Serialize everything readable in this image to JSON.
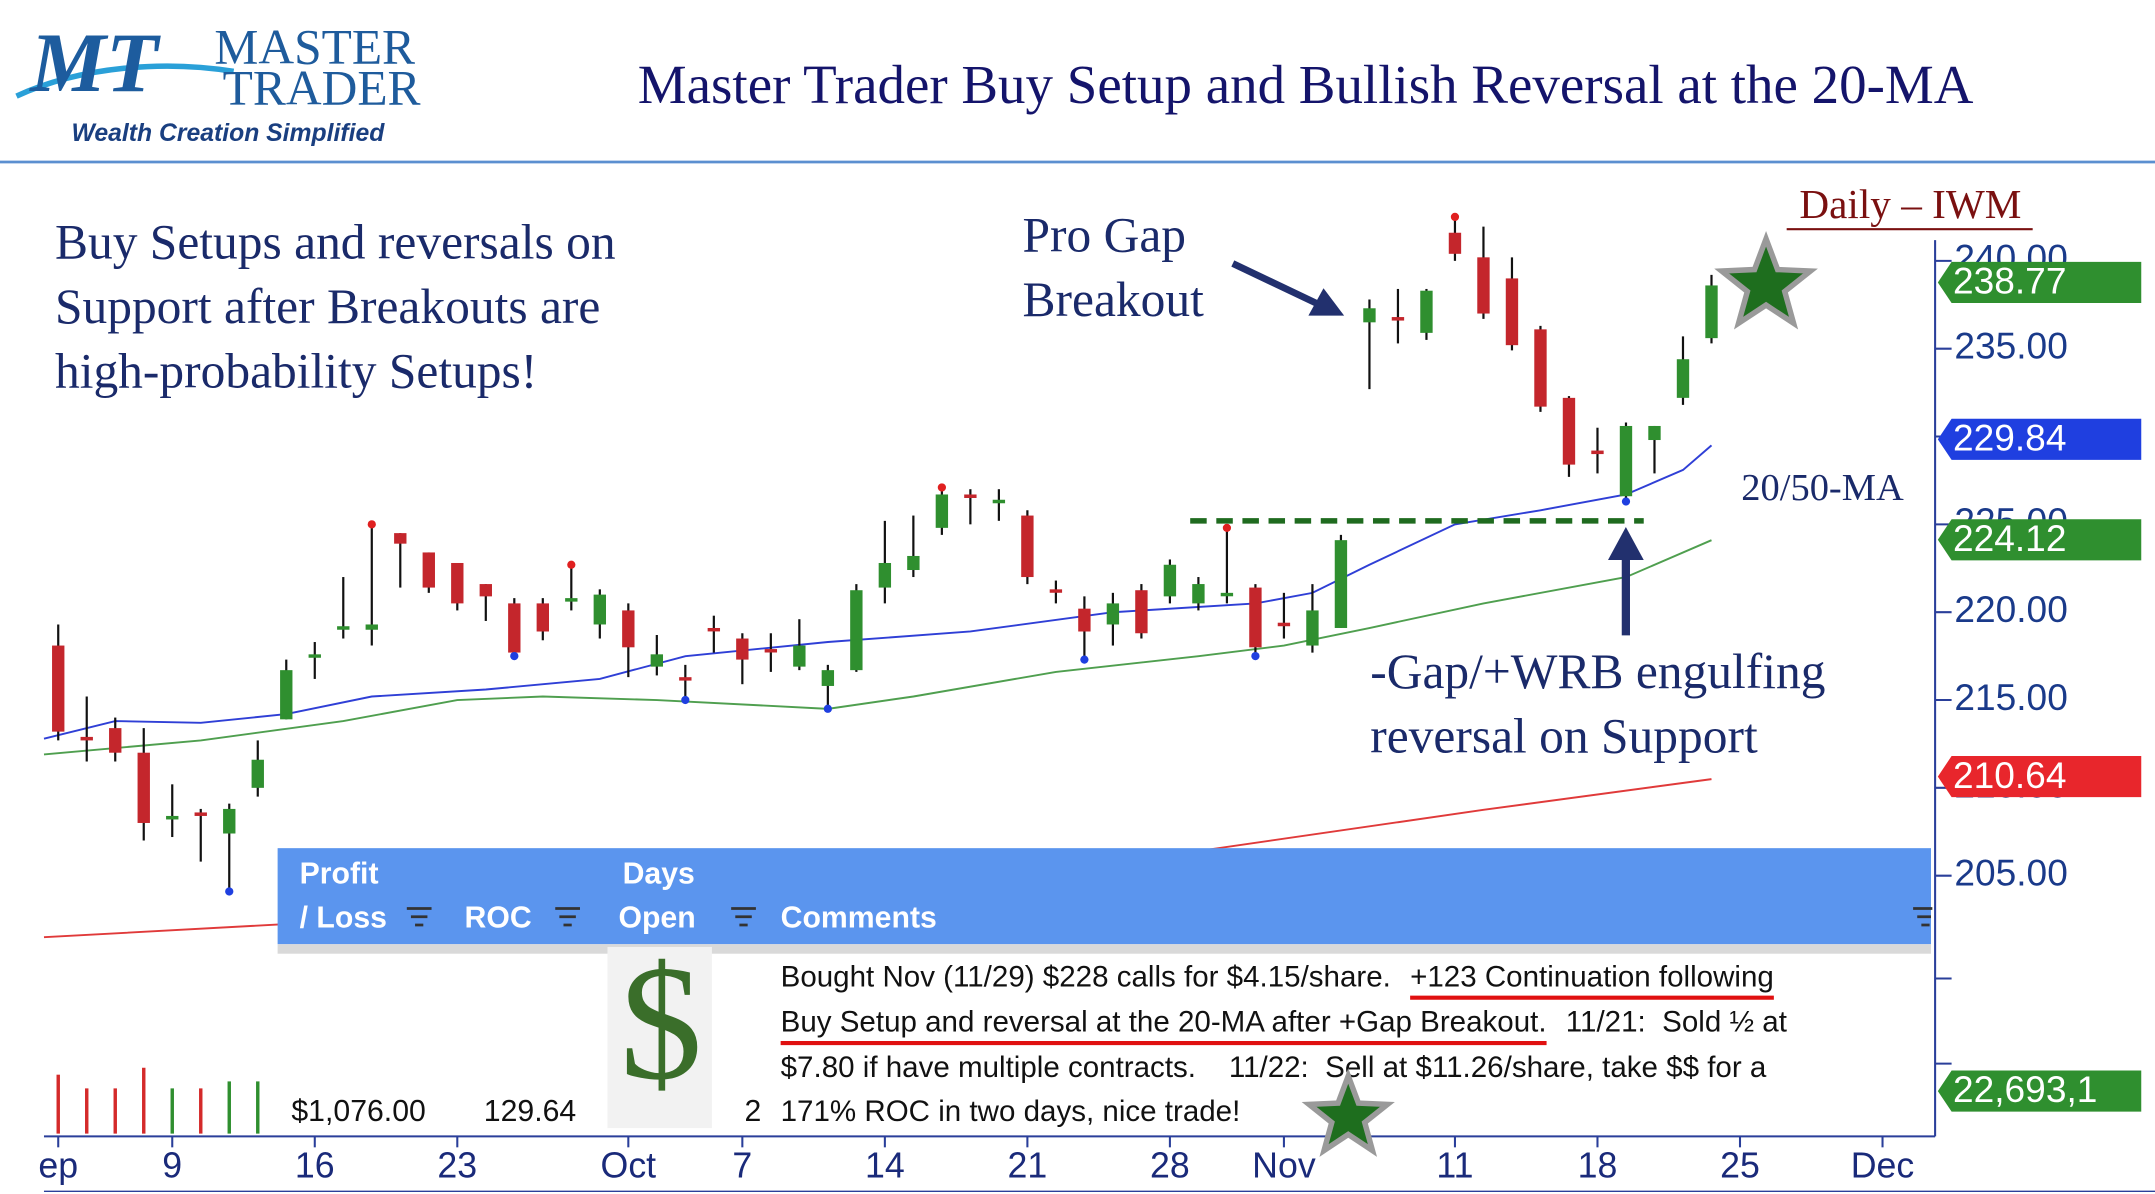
{
  "header": {
    "logo_initials": "MT",
    "logo_line1": "MASTER",
    "logo_line2": "TRADER",
    "tagline": "Wealth Creation Simplified",
    "title": "Master Trader Buy Setup and Bullish Reversal at the 20-MA"
  },
  "annotations": {
    "thesis": [
      "Buy Setups and reversals on",
      "Support after Breakouts are",
      "high-probability Setups!"
    ],
    "gap": [
      "Pro Gap",
      "Breakout"
    ],
    "ma": "20/50-MA",
    "reversal": [
      "-Gap/+WRB engulfing",
      "reversal on Support"
    ]
  },
  "chart_data": {
    "type": "candlestick",
    "title": "Daily – IWM",
    "x": [
      0,
      1,
      2,
      3,
      4,
      5,
      6,
      7,
      8,
      9,
      10,
      11,
      12,
      13,
      14,
      15,
      16,
      17,
      18,
      19,
      20,
      21,
      22,
      23,
      24,
      25,
      26,
      27,
      28,
      29,
      30,
      31,
      32,
      33,
      34,
      35,
      36,
      37,
      38,
      39,
      40,
      41,
      42,
      43,
      44,
      45,
      46,
      47,
      48,
      49,
      50,
      51,
      52,
      53,
      54,
      55,
      56,
      57,
      58
    ],
    "open": [
      218.1,
      212.9,
      213.4,
      212.0,
      208.2,
      208.6,
      207.4,
      210.0,
      213.9,
      217.5,
      219.0,
      219.0,
      224.5,
      223.4,
      222.8,
      221.6,
      220.5,
      220.5,
      220.6,
      219.3,
      220.1,
      216.9,
      216.3,
      219.1,
      218.5,
      217.9,
      216.9,
      215.8,
      216.7,
      221.4,
      222.4,
      224.8,
      226.7,
      226.2,
      225.5,
      221.3,
      220.2,
      219.3,
      221.25,
      220.9,
      220.5,
      221.0,
      221.4,
      219.4,
      218.1,
      219.1,
      236.5,
      236.8,
      235.9,
      241.6,
      240.2,
      239.0,
      236.1,
      232.2,
      229.2,
      226.6,
      229.8,
      232.2,
      235.6
    ],
    "high": [
      219.3,
      215.2,
      214.0,
      213.4,
      210.2,
      208.8,
      209.1,
      212.7,
      217.3,
      218.3,
      222.0,
      225.0,
      224.5,
      223.4,
      222.8,
      221.6,
      220.8,
      220.8,
      222.7,
      221.3,
      220.5,
      218.7,
      217.0,
      219.8,
      218.8,
      218.8,
      219.6,
      217.0,
      221.6,
      225.2,
      225.5,
      227.1,
      227.0,
      227.0,
      225.8,
      221.8,
      220.9,
      221.1,
      221.6,
      223.0,
      222.0,
      224.8,
      221.6,
      221.1,
      221.6,
      224.4,
      237.8,
      238.4,
      238.4,
      242.5,
      241.95,
      240.2,
      236.3,
      232.3,
      230.5,
      230.8,
      230.6,
      235.7,
      239.2
    ],
    "low": [
      212.7,
      211.5,
      211.5,
      207.0,
      207.2,
      205.8,
      204.1,
      209.5,
      213.9,
      216.2,
      218.5,
      218.1,
      221.4,
      221.1,
      220.1,
      219.5,
      217.5,
      218.4,
      220.1,
      218.5,
      216.3,
      216.4,
      215.0,
      217.7,
      215.9,
      216.6,
      216.7,
      214.5,
      216.6,
      220.5,
      222.0,
      224.4,
      225.0,
      225.2,
      221.6,
      220.5,
      217.3,
      218.1,
      218.5,
      220.5,
      220.1,
      220.5,
      217.5,
      218.5,
      217.7,
      219.1,
      232.7,
      235.3,
      235.5,
      240.0,
      236.7,
      234.9,
      231.4,
      227.7,
      227.9,
      226.3,
      227.9,
      231.8,
      235.3
    ],
    "close": [
      213.2,
      212.7,
      212.0,
      208.0,
      208.4,
      208.4,
      208.8,
      211.6,
      216.7,
      217.6,
      219.2,
      219.3,
      223.9,
      221.4,
      220.5,
      220.9,
      217.7,
      218.9,
      220.8,
      221.0,
      218.0,
      217.6,
      216.2,
      219.0,
      217.3,
      217.8,
      218.1,
      216.7,
      221.25,
      222.8,
      223.2,
      226.7,
      226.5,
      226.4,
      222.0,
      221.2,
      218.9,
      220.5,
      218.8,
      222.7,
      221.6,
      221.1,
      218.0,
      219.2,
      220.1,
      224.1,
      237.3,
      236.6,
      238.3,
      240.4,
      237.0,
      235.2,
      231.7,
      228.4,
      229.0,
      230.6,
      230.6,
      234.4,
      238.6
    ],
    "up_color": "#2f8f2f",
    "down_color": "#c4262c",
    "high_dots": [
      11,
      18,
      31,
      41,
      49
    ],
    "low_dots": [
      6,
      16,
      22,
      27,
      36,
      42,
      55
    ],
    "xlim": [
      -0.5,
      65.7
    ],
    "xticks": [
      {
        "value": 0,
        "label": "ep"
      },
      {
        "value": 4,
        "label": "9"
      },
      {
        "value": 9,
        "label": "16"
      },
      {
        "value": 14,
        "label": "23"
      },
      {
        "value": 20,
        "label": "Oct"
      },
      {
        "value": 24,
        "label": "7"
      },
      {
        "value": 29,
        "label": "14"
      },
      {
        "value": 34,
        "label": "21"
      },
      {
        "value": 39,
        "label": "28"
      },
      {
        "value": 43,
        "label": "Nov"
      },
      {
        "value": 49,
        "label": "11"
      },
      {
        "value": 54,
        "label": "18"
      },
      {
        "value": 59,
        "label": "25"
      },
      {
        "value": 64,
        "label": "Dec"
      }
    ],
    "ylim": [
      190.16,
      243.13
    ],
    "yticks": [
      {
        "value": 240,
        "label": "240.00"
      },
      {
        "value": 235,
        "label": "235.00"
      },
      {
        "value": 230,
        "label": "230.00"
      },
      {
        "value": 225,
        "label": "225.00"
      },
      {
        "value": 220,
        "label": "220.00"
      },
      {
        "value": 215,
        "label": "215.00"
      },
      {
        "value": 210,
        "label": "210.00"
      },
      {
        "value": 205,
        "label": "205.00"
      }
    ],
    "series": [
      {
        "color": "#2f3fd6",
        "x": [
          -0.5,
          2,
          5,
          8,
          11,
          15,
          19,
          22,
          27,
          32,
          37,
          42,
          44,
          46,
          49,
          52,
          55,
          57,
          58
        ],
        "values": [
          212.8,
          213.8,
          213.7,
          214.2,
          215.2,
          215.6,
          216.2,
          217.5,
          218.3,
          218.9,
          220.0,
          220.5,
          221.1,
          222.7,
          225.0,
          225.8,
          226.7,
          228.1,
          229.5
        ]
      },
      {
        "color": "#4f9f4f",
        "x": [
          -0.5,
          5,
          10,
          14,
          17,
          21,
          27,
          30,
          35,
          40,
          43,
          46,
          50,
          55,
          58
        ],
        "values": [
          211.9,
          212.7,
          213.8,
          215.0,
          215.2,
          215.0,
          214.5,
          215.2,
          216.6,
          217.5,
          218.1,
          219.1,
          220.5,
          222.0,
          224.1
        ]
      },
      {
        "color": "#e03a3a",
        "x": [
          -0.5,
          20,
          40,
          50,
          58
        ],
        "values": [
          201.5,
          203.3,
          206.4,
          208.75,
          210.5
        ]
      }
    ],
    "price_tags": [
      {
        "value": 238.77,
        "label": "238.77",
        "color": "#2f8f2f"
      },
      {
        "value": 229.84,
        "label": "229.84",
        "color": "#1f3fe0"
      },
      {
        "value": 224.12,
        "label": "224.12",
        "color": "#2f8f2f"
      },
      {
        "value": 210.64,
        "label": "210.64",
        "color": "#e8262c"
      }
    ],
    "support_level": 225.2,
    "volume": {
      "x": [
        0,
        1,
        2,
        3,
        4,
        5,
        6,
        7
      ],
      "values": [
        22800000,
        17500000,
        17500000,
        25500000,
        17500000,
        17500000,
        20200000,
        20200000
      ],
      "colors": [
        "#d42a2a",
        "#d42a2a",
        "#d42a2a",
        "#d42a2a",
        "#2f8f2f",
        "#d42a2a",
        "#2f8f2f",
        "#2f8f2f"
      ],
      "ylim": [
        0,
        60000000
      ],
      "tag": "22,693,1",
      "tag_color": "#2f8f2f"
    }
  },
  "table": {
    "headers": [
      [
        "Profit",
        "/ Loss"
      ],
      [
        "ROC"
      ],
      [
        "Days",
        "Open"
      ],
      [
        "Comments"
      ]
    ],
    "row": {
      "profit": "$1,076.00",
      "roc": "129.64",
      "days": "2",
      "icon": "$"
    },
    "comment_lines": [
      [
        {
          "text": "Bought Nov (11/29) $228 calls for $4.15/share.",
          "underline": false
        },
        {
          "text": "+123 Continuation following",
          "underline": true
        }
      ],
      [
        {
          "text": "Buy Setup and reversal at the 20-MA after +Gap Breakout.",
          "underline": true
        },
        {
          "text": "11/21:  Sold ½ at",
          "underline": false
        }
      ],
      [
        {
          "text": "$7.80 if have multiple contracts.    11/22:  Sell at $11.26/share, take $$ for a",
          "underline": false
        }
      ],
      [
        {
          "text": "171% ROC in two days, nice trade!",
          "underline": false
        }
      ]
    ]
  }
}
